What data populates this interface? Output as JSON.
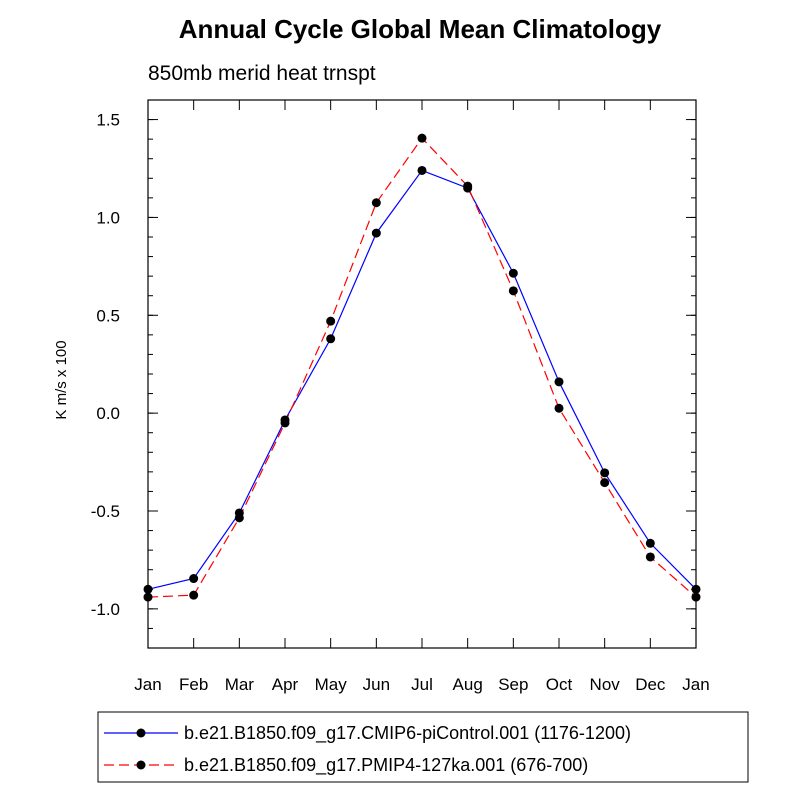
{
  "chart_data": {
    "type": "line",
    "title": "Annual Cycle Global Mean Climatology",
    "subtitle": "850mb merid heat trnspt",
    "xlabel": "",
    "ylabel": "K m/s x 100",
    "categories": [
      "Jan",
      "Feb",
      "Mar",
      "Apr",
      "May",
      "Jun",
      "Jul",
      "Aug",
      "Sep",
      "Oct",
      "Nov",
      "Dec",
      "Jan"
    ],
    "ylim": [
      -1.2,
      1.6
    ],
    "yticks": [
      "1.5",
      "1.0",
      "0.5",
      "0.0",
      "-0.5",
      "-1.0"
    ],
    "ytick_values": [
      1.5,
      1.0,
      0.5,
      0.0,
      -0.5,
      -1.0
    ],
    "legend_position": "bottom",
    "series": [
      {
        "name": "b.e21.B1850.f09_g17.CMIP6-piControl.001 (1176-1200)",
        "color": "#0000ff",
        "dash": "solid",
        "values": [
          -0.9,
          -0.845,
          -0.51,
          -0.035,
          0.38,
          0.92,
          1.24,
          1.15,
          0.715,
          0.16,
          -0.305,
          -0.665,
          -0.9
        ]
      },
      {
        "name": "b.e21.B1850.f09_g17.PMIP4-127ka.001 (676-700)",
        "color": "#ff0000",
        "dash": "dashed",
        "values": [
          -0.94,
          -0.93,
          -0.535,
          -0.05,
          0.47,
          1.075,
          1.405,
          1.16,
          0.625,
          0.025,
          -0.355,
          -0.735,
          -0.94
        ]
      }
    ]
  }
}
